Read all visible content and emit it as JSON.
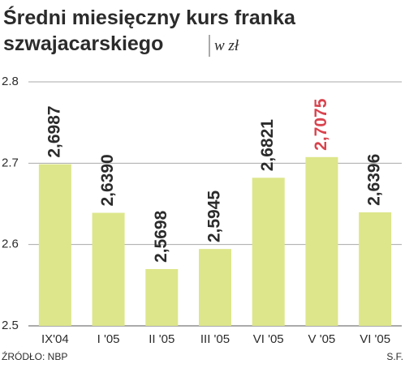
{
  "chart_data": {
    "type": "bar",
    "title": "Średni miesięczny kurs franka",
    "title_line2": "szwajacarskiego",
    "subtitle": "w zł",
    "categories": [
      "IX'04",
      "I '05",
      "II '05",
      "III '05",
      "VI '05",
      "V '05",
      "VI '05"
    ],
    "values": [
      2.6987,
      2.639,
      2.5698,
      2.5945,
      2.6821,
      2.7075,
      2.6396
    ],
    "value_labels": [
      "2,6987",
      "2,6390",
      "2,5698",
      "2,5945",
      "2,6821",
      "2,7075",
      "2,6396"
    ],
    "value_label_colors": [
      "#2b2b2b",
      "#2b2b2b",
      "#2b2b2b",
      "#2b2b2b",
      "#2b2b2b",
      "#d9434e",
      "#2b2b2b"
    ],
    "color": "#dde68a",
    "ylim": [
      2.5,
      2.8
    ],
    "yticks": [
      2.5,
      2.6,
      2.7,
      2.8
    ],
    "grid": true,
    "source": "ŹRÓDŁO: NBP",
    "credit": "S.F."
  }
}
